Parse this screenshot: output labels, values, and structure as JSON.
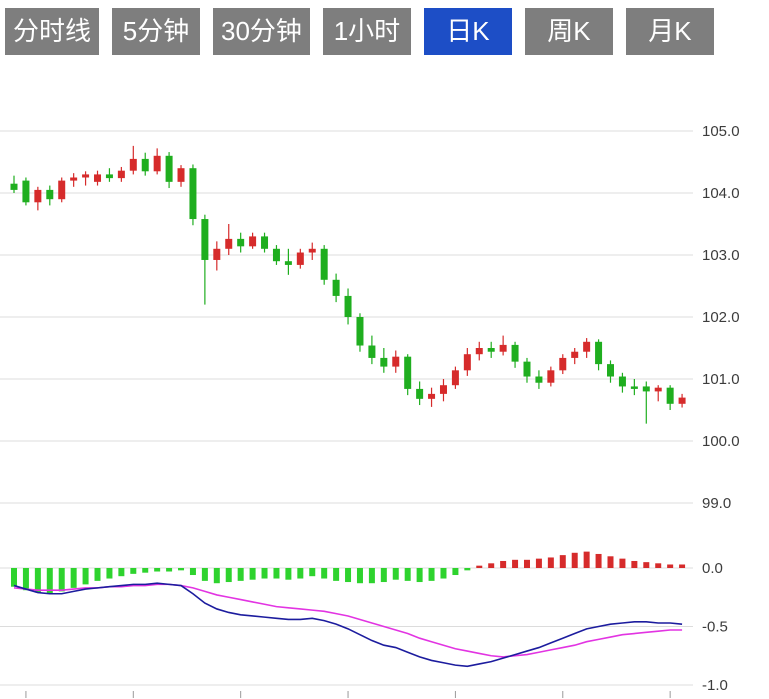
{
  "toolbar": {
    "tabs": [
      {
        "label": "分时线",
        "active": false
      },
      {
        "label": "5分钟",
        "active": false
      },
      {
        "label": "30分钟",
        "active": false
      },
      {
        "label": "1小时",
        "active": false
      },
      {
        "label": "日K",
        "active": true
      },
      {
        "label": "周K",
        "active": false
      },
      {
        "label": "月K",
        "active": false
      }
    ],
    "active_bg": "#1d4ec6",
    "inactive_bg": "#7e7e7e"
  },
  "chart_data": {
    "type": "candlestick+macd",
    "panels": [
      "price-candles",
      "macd-indicator"
    ],
    "price_axis": {
      "ticks": [
        105.0,
        104.0,
        103.0,
        102.0,
        101.0,
        100.0,
        99.0
      ],
      "min": 98.6,
      "max": 105.6
    },
    "macd_axis": {
      "ticks": [
        0.0,
        -0.5,
        -1.0
      ],
      "min": -1.05,
      "max": 0.18
    },
    "grid": true,
    "legend": "none",
    "colors": {
      "up": "#d62b2b",
      "down": "#1fae1f",
      "hist_up": "#d62b2b",
      "hist_down": "#2ed32e",
      "dif_line": "#1c1c9e",
      "dea_line": "#e234e2",
      "grid": "#dcdcdc",
      "axis_text": "#3c3c3c"
    },
    "candles": [
      [
        104.15,
        104.28,
        104.0,
        104.05
      ],
      [
        104.2,
        104.25,
        103.8,
        103.85
      ],
      [
        103.85,
        104.1,
        103.72,
        104.05
      ],
      [
        104.05,
        104.12,
        103.8,
        103.9
      ],
      [
        103.9,
        104.25,
        103.85,
        104.2
      ],
      [
        104.2,
        104.32,
        104.1,
        104.25
      ],
      [
        104.25,
        104.35,
        104.12,
        104.3
      ],
      [
        104.18,
        104.36,
        104.12,
        104.3
      ],
      [
        104.3,
        104.4,
        104.18,
        104.24
      ],
      [
        104.24,
        104.42,
        104.18,
        104.36
      ],
      [
        104.36,
        104.76,
        104.3,
        104.55
      ],
      [
        104.55,
        104.65,
        104.28,
        104.35
      ],
      [
        104.35,
        104.72,
        104.3,
        104.6
      ],
      [
        104.6,
        104.66,
        104.08,
        104.18
      ],
      [
        104.18,
        104.45,
        104.1,
        104.4
      ],
      [
        104.4,
        104.46,
        103.48,
        103.58
      ],
      [
        103.58,
        103.65,
        102.2,
        102.92
      ],
      [
        102.92,
        103.22,
        102.75,
        103.1
      ],
      [
        103.1,
        103.5,
        103.0,
        103.26
      ],
      [
        103.26,
        103.36,
        103.04,
        103.14
      ],
      [
        103.14,
        103.36,
        103.1,
        103.3
      ],
      [
        103.3,
        103.36,
        103.04,
        103.1
      ],
      [
        103.1,
        103.16,
        102.84,
        102.9
      ],
      [
        102.9,
        103.1,
        102.68,
        102.84
      ],
      [
        102.84,
        103.1,
        102.78,
        103.04
      ],
      [
        103.04,
        103.2,
        102.92,
        103.1
      ],
      [
        103.1,
        103.16,
        102.52,
        102.6
      ],
      [
        102.6,
        102.7,
        102.24,
        102.34
      ],
      [
        102.34,
        102.46,
        101.88,
        102.0
      ],
      [
        102.0,
        102.06,
        101.44,
        101.54
      ],
      [
        101.54,
        101.7,
        101.24,
        101.34
      ],
      [
        101.34,
        101.5,
        101.1,
        101.2
      ],
      [
        101.2,
        101.46,
        101.1,
        101.36
      ],
      [
        101.36,
        101.4,
        100.74,
        100.84
      ],
      [
        100.84,
        100.96,
        100.58,
        100.68
      ],
      [
        100.68,
        100.86,
        100.55,
        100.76
      ],
      [
        100.76,
        101.0,
        100.64,
        100.9
      ],
      [
        100.9,
        101.2,
        100.84,
        101.14
      ],
      [
        101.14,
        101.5,
        101.05,
        101.4
      ],
      [
        101.4,
        101.6,
        101.3,
        101.5
      ],
      [
        101.5,
        101.6,
        101.34,
        101.44
      ],
      [
        101.44,
        101.7,
        101.38,
        101.55
      ],
      [
        101.55,
        101.6,
        101.18,
        101.28
      ],
      [
        101.28,
        101.34,
        100.94,
        101.04
      ],
      [
        101.04,
        101.14,
        100.84,
        100.94
      ],
      [
        100.94,
        101.2,
        100.88,
        101.14
      ],
      [
        101.14,
        101.4,
        101.08,
        101.34
      ],
      [
        101.34,
        101.5,
        101.24,
        101.44
      ],
      [
        101.44,
        101.66,
        101.34,
        101.6
      ],
      [
        101.6,
        101.64,
        101.14,
        101.24
      ],
      [
        101.24,
        101.3,
        100.94,
        101.04
      ],
      [
        101.04,
        101.1,
        100.78,
        100.88
      ],
      [
        100.88,
        101.0,
        100.74,
        100.84
      ],
      [
        100.88,
        100.96,
        100.28,
        100.8
      ],
      [
        100.8,
        100.9,
        100.64,
        100.86
      ],
      [
        100.86,
        100.9,
        100.5,
        100.6
      ],
      [
        100.6,
        100.76,
        100.54,
        100.7
      ]
    ],
    "macd": {
      "histogram": [
        -0.16,
        -0.19,
        -0.21,
        -0.22,
        -0.2,
        -0.17,
        -0.14,
        -0.11,
        -0.09,
        -0.07,
        -0.05,
        -0.04,
        -0.03,
        -0.03,
        -0.02,
        -0.06,
        -0.11,
        -0.13,
        -0.12,
        -0.11,
        -0.1,
        -0.09,
        -0.09,
        -0.1,
        -0.09,
        -0.07,
        -0.09,
        -0.11,
        -0.12,
        -0.13,
        -0.13,
        -0.12,
        -0.1,
        -0.11,
        -0.12,
        -0.11,
        -0.09,
        -0.06,
        -0.02,
        0.02,
        0.04,
        0.06,
        0.07,
        0.07,
        0.08,
        0.09,
        0.11,
        0.13,
        0.14,
        0.12,
        0.1,
        0.08,
        0.06,
        0.05,
        0.04,
        0.03,
        0.03
      ],
      "dif": [
        -0.15,
        -0.18,
        -0.21,
        -0.22,
        -0.22,
        -0.2,
        -0.18,
        -0.17,
        -0.16,
        -0.15,
        -0.14,
        -0.14,
        -0.13,
        -0.14,
        -0.15,
        -0.22,
        -0.3,
        -0.35,
        -0.38,
        -0.4,
        -0.41,
        -0.42,
        -0.43,
        -0.44,
        -0.44,
        -0.43,
        -0.45,
        -0.48,
        -0.52,
        -0.57,
        -0.62,
        -0.66,
        -0.68,
        -0.72,
        -0.76,
        -0.79,
        -0.81,
        -0.83,
        -0.84,
        -0.82,
        -0.8,
        -0.77,
        -0.74,
        -0.71,
        -0.68,
        -0.64,
        -0.6,
        -0.56,
        -0.52,
        -0.5,
        -0.48,
        -0.47,
        -0.46,
        -0.46,
        -0.47,
        -0.47,
        -0.48
      ],
      "dea": [
        -0.17,
        -0.18,
        -0.19,
        -0.19,
        -0.19,
        -0.18,
        -0.17,
        -0.17,
        -0.16,
        -0.16,
        -0.15,
        -0.15,
        -0.14,
        -0.14,
        -0.15,
        -0.17,
        -0.2,
        -0.23,
        -0.25,
        -0.27,
        -0.29,
        -0.31,
        -0.33,
        -0.34,
        -0.35,
        -0.36,
        -0.37,
        -0.39,
        -0.41,
        -0.44,
        -0.47,
        -0.5,
        -0.53,
        -0.56,
        -0.6,
        -0.63,
        -0.66,
        -0.69,
        -0.71,
        -0.73,
        -0.75,
        -0.76,
        -0.75,
        -0.74,
        -0.72,
        -0.7,
        -0.68,
        -0.66,
        -0.63,
        -0.61,
        -0.59,
        -0.57,
        -0.56,
        -0.55,
        -0.54,
        -0.53,
        -0.53
      ]
    }
  }
}
